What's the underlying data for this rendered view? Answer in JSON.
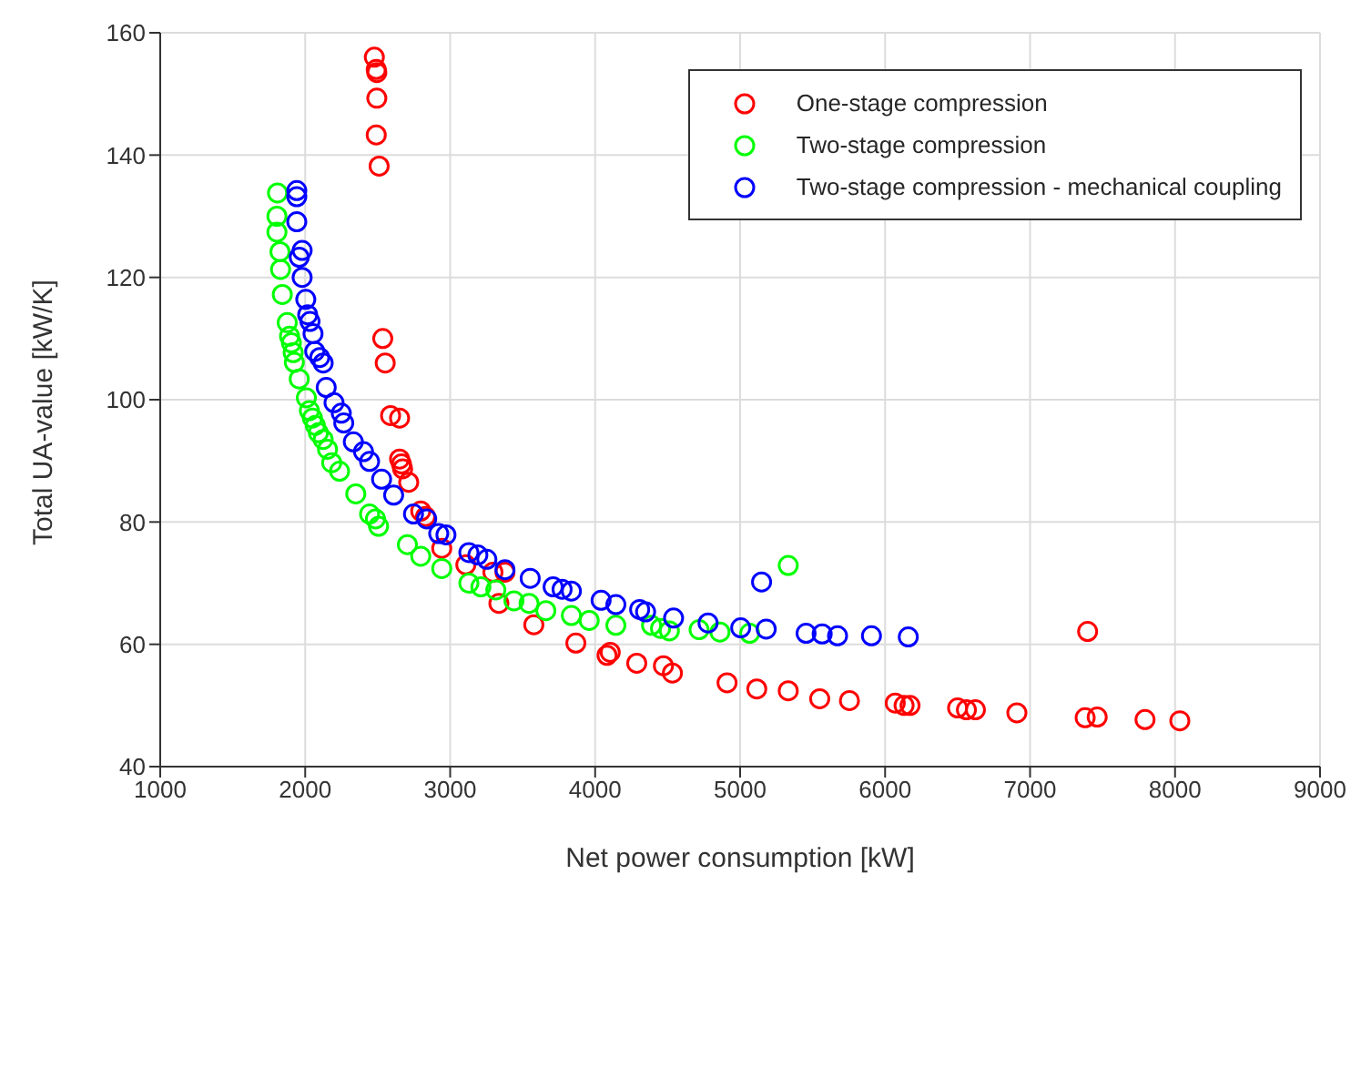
{
  "chart_data": {
    "type": "scatter",
    "xlabel": "Net power consumption [kW]",
    "ylabel": "Total UA-value [kW/K]",
    "xlim": [
      1000,
      9000
    ],
    "xticks": [
      1000,
      2000,
      3000,
      4000,
      5000,
      6000,
      7000,
      8000,
      9000
    ],
    "ylim": [
      40,
      160
    ],
    "yticks": [
      40,
      60,
      80,
      100,
      120,
      140,
      160
    ],
    "grid": true,
    "legend": "top right",
    "marker": "circle",
    "series": [
      {
        "name": "One-stage compression",
        "color": "#ff0000",
        "x": [
          2477,
          2490,
          2494,
          2494,
          2490,
          2510,
          2535,
          2552,
          2589,
          2651,
          2651,
          2664,
          2672,
          2714,
          2797,
          2830,
          2942,
          3108,
          3295,
          3378,
          3336,
          3577,
          3867,
          4104,
          4082,
          4287,
          4471,
          4533,
          4910,
          5115,
          5332,
          5549,
          5754,
          6070,
          6131,
          6172,
          6500,
          6561,
          6623,
          6909,
          7380,
          7463,
          7793,
          8033,
          7397
        ],
        "values": [
          156,
          154,
          153.5,
          149.3,
          143.3,
          138.2,
          110,
          106,
          97.4,
          97,
          90.3,
          89.5,
          88.7,
          86.5,
          81.8,
          80.9,
          75.7,
          73,
          71.8,
          71.8,
          66.7,
          63.2,
          60.2,
          58.7,
          58.2,
          56.9,
          56.5,
          55.3,
          53.7,
          52.7,
          52.4,
          51.1,
          50.8,
          50.4,
          50,
          50,
          49.6,
          49.3,
          49.3,
          48.8,
          48,
          48.1,
          47.7,
          47.5,
          62.1
        ]
      },
      {
        "name": "Two-stage compression",
        "color": "#00ff00",
        "x": [
          1809,
          1805,
          1805,
          1826,
          1830,
          1842,
          1876,
          1892,
          1905,
          1917,
          1925,
          1959,
          2008,
          2029,
          2050,
          2070,
          2091,
          2124,
          2154,
          2183,
          2237,
          2349,
          2444,
          2485,
          2506,
          2705,
          2797,
          2942,
          3129,
          3212,
          3315,
          3440,
          3544,
          3660,
          3836,
          3959,
          4143,
          4389,
          4451,
          4512,
          4717,
          4861,
          5066,
          5332
        ],
        "values": [
          133.8,
          130,
          127.4,
          124.2,
          121.3,
          117.2,
          112.6,
          110.4,
          109.3,
          107.7,
          106.1,
          103.4,
          100.3,
          98.2,
          97,
          95.8,
          94.6,
          93.5,
          91.9,
          89.7,
          88.3,
          84.6,
          81.3,
          80.5,
          79.3,
          76.3,
          74.4,
          72.4,
          70,
          69.4,
          68.9,
          67.1,
          66.7,
          65.5,
          64.7,
          63.9,
          63.1,
          63.1,
          62.6,
          62.2,
          62.4,
          62,
          61.8,
          72.9
        ]
      },
      {
        "name": "Two-stage compression - mechanical coupling",
        "color": "#0000ff",
        "x": [
          1942,
          1942,
          1942,
          1979,
          1959,
          1979,
          2004,
          2017,
          2033,
          2054,
          2066,
          2100,
          2124,
          2145,
          2199,
          2249,
          2266,
          2332,
          2402,
          2444,
          2527,
          2610,
          2747,
          2838,
          2921,
          2971,
          3129,
          3191,
          3253,
          3378,
          3552,
          3710,
          3772,
          3836,
          4041,
          4143,
          4307,
          4348,
          4541,
          4779,
          5004,
          5180,
          5455,
          5566,
          5672,
          5906,
          6160,
          5148
        ],
        "values": [
          134.2,
          133.2,
          129.1,
          124.4,
          123.3,
          120,
          116.4,
          113.9,
          112.8,
          110.8,
          107.9,
          106.9,
          106,
          102,
          99.5,
          97.8,
          96.2,
          93.1,
          91.5,
          89.9,
          87,
          84.4,
          81.3,
          80.5,
          78.1,
          77.9,
          75,
          74.6,
          73.9,
          72.2,
          70.8,
          69.4,
          69,
          68.7,
          67.2,
          66.5,
          65.7,
          65.3,
          64.3,
          63.5,
          62.7,
          62.5,
          61.8,
          61.7,
          61.4,
          61.4,
          61.2,
          70.2
        ]
      }
    ]
  }
}
